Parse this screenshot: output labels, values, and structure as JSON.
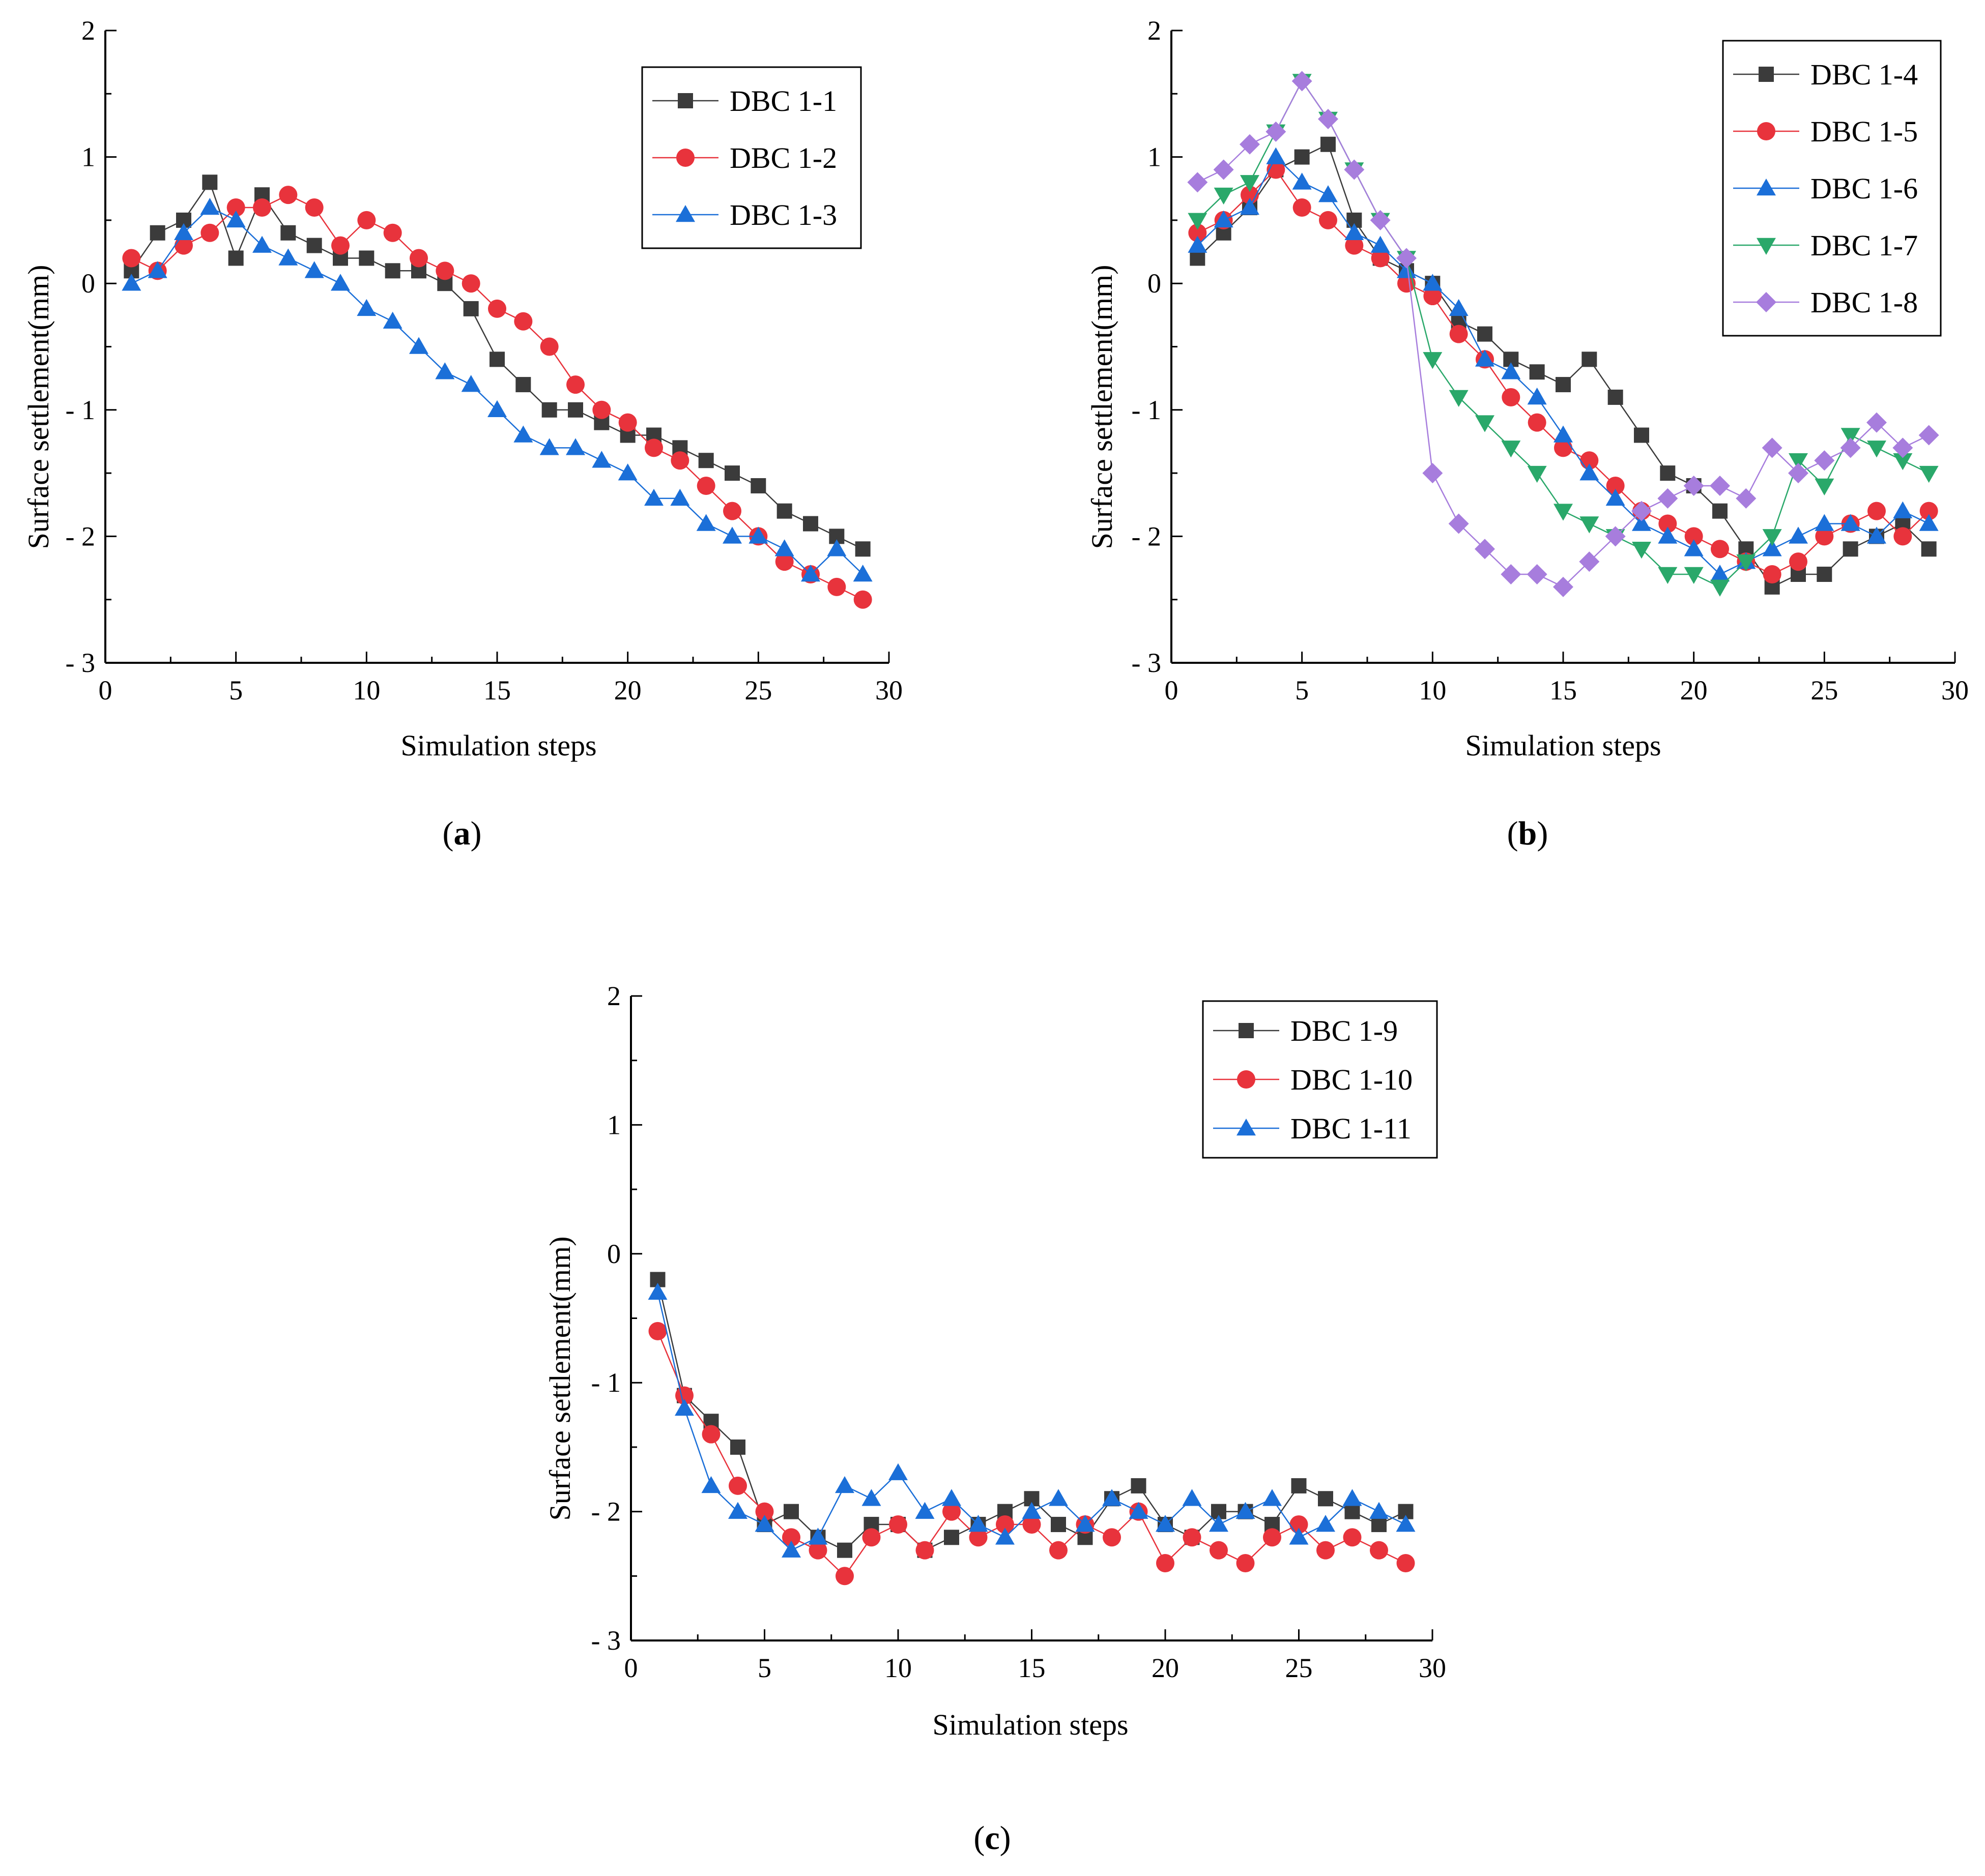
{
  "chart_data": [
    {
      "type": "line",
      "caption_prefix": "(",
      "caption_letter": "a",
      "caption_suffix": ")",
      "xlabel": "Simulation steps",
      "ylabel": "Surface settlement(mm)",
      "xlim": [
        0,
        30
      ],
      "ylim": [
        -3,
        2
      ],
      "xticks": [
        "0",
        "5",
        "10",
        "15",
        "20",
        "25",
        "30"
      ],
      "yticks": [
        "- 3",
        "- 2",
        "- 1",
        "0",
        "1",
        "2"
      ],
      "legend_position": "top-right",
      "x": [
        1,
        2,
        3,
        4,
        5,
        6,
        7,
        8,
        9,
        10,
        11,
        12,
        13,
        14,
        15,
        16,
        17,
        18,
        19,
        20,
        21,
        22,
        23,
        24,
        25,
        26,
        27,
        28,
        29
      ],
      "series": [
        {
          "name": "DBC 1-1",
          "color": "#3b3b3b",
          "marker": "square",
          "values": [
            0.1,
            0.4,
            0.5,
            0.8,
            0.2,
            0.7,
            0.4,
            0.3,
            0.2,
            0.2,
            0.1,
            0.1,
            0.0,
            -0.2,
            -0.6,
            -0.8,
            -1.0,
            -1.0,
            -1.1,
            -1.2,
            -1.2,
            -1.3,
            -1.4,
            -1.5,
            -1.6,
            -1.8,
            -1.9,
            -2.0,
            -2.1
          ]
        },
        {
          "name": "DBC 1-2",
          "color": "#e8333c",
          "marker": "circle",
          "values": [
            0.2,
            0.1,
            0.3,
            0.4,
            0.6,
            0.6,
            0.7,
            0.6,
            0.3,
            0.5,
            0.4,
            0.2,
            0.1,
            0.0,
            -0.2,
            -0.3,
            -0.5,
            -0.8,
            -1.0,
            -1.1,
            -1.3,
            -1.4,
            -1.6,
            -1.8,
            -2.0,
            -2.2,
            -2.3,
            -2.4,
            -2.5
          ]
        },
        {
          "name": "DBC 1-3",
          "color": "#1b6fd8",
          "marker": "triangle",
          "values": [
            0.0,
            0.1,
            0.4,
            0.6,
            0.5,
            0.3,
            0.2,
            0.1,
            0.0,
            -0.2,
            -0.3,
            -0.5,
            -0.7,
            -0.8,
            -1.0,
            -1.2,
            -1.3,
            -1.3,
            -1.4,
            -1.5,
            -1.7,
            -1.7,
            -1.9,
            -2.0,
            -2.0,
            -2.1,
            -2.3,
            -2.1,
            -2.3
          ]
        }
      ]
    },
    {
      "type": "line",
      "caption_prefix": "(",
      "caption_letter": "b",
      "caption_suffix": ")",
      "xlabel": "Simulation steps",
      "ylabel": "Surface settlement(mm)",
      "xlim": [
        0,
        30
      ],
      "ylim": [
        -3,
        2
      ],
      "xticks": [
        "0",
        "5",
        "10",
        "15",
        "20",
        "25",
        "30"
      ],
      "yticks": [
        "- 3",
        "- 2",
        "- 1",
        "0",
        "1",
        "2"
      ],
      "legend_position": "top-right",
      "x": [
        1,
        2,
        3,
        4,
        5,
        6,
        7,
        8,
        9,
        10,
        11,
        12,
        13,
        14,
        15,
        16,
        17,
        18,
        19,
        20,
        21,
        22,
        23,
        24,
        25,
        26,
        27,
        28,
        29
      ],
      "series": [
        {
          "name": "DBC 1-4",
          "color": "#3b3b3b",
          "marker": "square",
          "values": [
            0.2,
            0.4,
            0.6,
            0.9,
            1.0,
            1.1,
            0.5,
            0.2,
            0.1,
            0.0,
            -0.3,
            -0.4,
            -0.6,
            -0.7,
            -0.8,
            -0.6,
            -0.9,
            -1.2,
            -1.5,
            -1.6,
            -1.8,
            -2.1,
            -2.4,
            -2.3,
            -2.3,
            -2.1,
            -2.0,
            -1.9,
            -2.1
          ]
        },
        {
          "name": "DBC 1-5",
          "color": "#e8333c",
          "marker": "circle",
          "values": [
            0.4,
            0.5,
            0.7,
            0.9,
            0.6,
            0.5,
            0.3,
            0.2,
            0.0,
            -0.1,
            -0.4,
            -0.6,
            -0.9,
            -1.1,
            -1.3,
            -1.4,
            -1.6,
            -1.8,
            -1.9,
            -2.0,
            -2.1,
            -2.2,
            -2.3,
            -2.2,
            -2.0,
            -1.9,
            -1.8,
            -2.0,
            -1.8
          ]
        },
        {
          "name": "DBC 1-6",
          "color": "#1b6fd8",
          "marker": "triangle",
          "values": [
            0.3,
            0.5,
            0.6,
            1.0,
            0.8,
            0.7,
            0.4,
            0.3,
            0.1,
            0.0,
            -0.2,
            -0.6,
            -0.7,
            -0.9,
            -1.2,
            -1.5,
            -1.7,
            -1.9,
            -2.0,
            -2.1,
            -2.3,
            -2.2,
            -2.1,
            -2.0,
            -1.9,
            -1.9,
            -2.0,
            -1.8,
            -1.9
          ]
        },
        {
          "name": "DBC 1-7",
          "color": "#2aa86a",
          "marker": "triangle-down",
          "values": [
            0.5,
            0.7,
            0.8,
            1.2,
            1.6,
            1.3,
            0.9,
            0.5,
            0.2,
            -0.6,
            -0.9,
            -1.1,
            -1.3,
            -1.5,
            -1.8,
            -1.9,
            -2.0,
            -2.1,
            -2.3,
            -2.3,
            -2.4,
            -2.2,
            -2.0,
            -1.4,
            -1.6,
            -1.2,
            -1.3,
            -1.4,
            -1.5
          ]
        },
        {
          "name": "DBC 1-8",
          "color": "#a77ddd",
          "marker": "diamond",
          "values": [
            0.8,
            0.9,
            1.1,
            1.2,
            1.6,
            1.3,
            0.9,
            0.5,
            0.2,
            -1.5,
            -1.9,
            -2.1,
            -2.3,
            -2.3,
            -2.4,
            -2.2,
            -2.0,
            -1.8,
            -1.7,
            -1.6,
            -1.6,
            -1.7,
            -1.3,
            -1.5,
            -1.4,
            -1.3,
            -1.1,
            -1.3,
            -1.2
          ]
        }
      ]
    },
    {
      "type": "line",
      "caption_prefix": "(",
      "caption_letter": "c",
      "caption_suffix": ")",
      "xlabel": "Simulation steps",
      "ylabel": "Surface settlement(mm)",
      "xlim": [
        0,
        30
      ],
      "ylim": [
        -3,
        2
      ],
      "xticks": [
        "0",
        "5",
        "10",
        "15",
        "20",
        "25",
        "30"
      ],
      "yticks": [
        "- 3",
        "- 2",
        "- 1",
        "0",
        "1",
        "2"
      ],
      "legend_position": "top-right",
      "x": [
        1,
        2,
        3,
        4,
        5,
        6,
        7,
        8,
        9,
        10,
        11,
        12,
        13,
        14,
        15,
        16,
        17,
        18,
        19,
        20,
        21,
        22,
        23,
        24,
        25,
        26,
        27,
        28,
        29
      ],
      "series": [
        {
          "name": "DBC 1-9",
          "color": "#3b3b3b",
          "marker": "square",
          "values": [
            -0.2,
            -1.1,
            -1.3,
            -1.5,
            -2.1,
            -2.0,
            -2.2,
            -2.3,
            -2.1,
            -2.1,
            -2.3,
            -2.2,
            -2.1,
            -2.0,
            -1.9,
            -2.1,
            -2.2,
            -1.9,
            -1.8,
            -2.1,
            -2.2,
            -2.0,
            -2.0,
            -2.1,
            -1.8,
            -1.9,
            -2.0,
            -2.1,
            -2.0
          ]
        },
        {
          "name": "DBC 1-10",
          "color": "#e8333c",
          "marker": "circle",
          "values": [
            -0.6,
            -1.1,
            -1.4,
            -1.8,
            -2.0,
            -2.2,
            -2.3,
            -2.5,
            -2.2,
            -2.1,
            -2.3,
            -2.0,
            -2.2,
            -2.1,
            -2.1,
            -2.3,
            -2.1,
            -2.2,
            -2.0,
            -2.4,
            -2.2,
            -2.3,
            -2.4,
            -2.2,
            -2.1,
            -2.3,
            -2.2,
            -2.3,
            -2.4
          ]
        },
        {
          "name": "DBC 1-11",
          "color": "#1b6fd8",
          "marker": "triangle",
          "values": [
            -0.3,
            -1.2,
            -1.8,
            -2.0,
            -2.1,
            -2.3,
            -2.2,
            -1.8,
            -1.9,
            -1.7,
            -2.0,
            -1.9,
            -2.1,
            -2.2,
            -2.0,
            -1.9,
            -2.1,
            -1.9,
            -2.0,
            -2.1,
            -1.9,
            -2.1,
            -2.0,
            -1.9,
            -2.2,
            -2.1,
            -1.9,
            -2.0,
            -2.1
          ]
        }
      ]
    }
  ]
}
